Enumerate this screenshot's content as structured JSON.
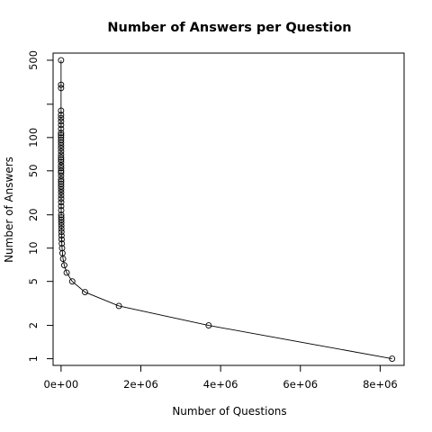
{
  "chart_data": {
    "type": "line",
    "title": "Number of Answers per Question",
    "xlabel": "Number of Questions",
    "ylabel": "Number of Answers",
    "xlim": [
      -200000,
      8600000
    ],
    "ylim": [
      0.87,
      580
    ],
    "yscale": "log",
    "markers": "open-circle",
    "grid": false,
    "legend": "none",
    "x_ticks": [
      {
        "value": 0,
        "label": "0e+00"
      },
      {
        "value": 2000000,
        "label": "2e+06"
      },
      {
        "value": 4000000,
        "label": "4e+06"
      },
      {
        "value": 6000000,
        "label": "6e+06"
      },
      {
        "value": 8000000,
        "label": "8e+06"
      }
    ],
    "y_ticks": [
      {
        "value": 1,
        "label": "1"
      },
      {
        "value": 2,
        "label": "2"
      },
      {
        "value": 5,
        "label": "5"
      },
      {
        "value": 10,
        "label": "10"
      },
      {
        "value": 20,
        "label": "20"
      },
      {
        "value": 50,
        "label": "50"
      },
      {
        "value": 100,
        "label": "100"
      },
      {
        "value": 200,
        "label": ""
      },
      {
        "value": 500,
        "label": "500"
      }
    ],
    "x": [
      8300000,
      3700000,
      1450000,
      600000,
      280000,
      140000,
      80000,
      50000,
      35000,
      25000,
      18000,
      14000,
      11000,
      9000,
      7500,
      6500,
      5500,
      4800,
      4200,
      3700,
      3300,
      2900,
      2600,
      2300,
      2100,
      1900,
      1700,
      1500,
      1400,
      1300,
      1200,
      1100,
      1000,
      900,
      800,
      700,
      650,
      600,
      550,
      500,
      450,
      400,
      350,
      300,
      250,
      200,
      150,
      100,
      80,
      60,
      40,
      30,
      20,
      15,
      10,
      5,
      1
    ],
    "values": [
      1,
      2,
      3,
      4,
      5,
      6,
      7,
      8,
      9,
      10,
      11,
      12,
      13,
      14,
      15,
      16,
      17,
      18,
      19,
      20,
      22,
      24,
      26,
      28,
      30,
      32,
      34,
      36,
      38,
      40,
      42,
      45,
      48,
      50,
      53,
      56,
      60,
      63,
      66,
      70,
      75,
      80,
      85,
      90,
      95,
      100,
      105,
      110,
      120,
      130,
      140,
      150,
      160,
      175,
      280,
      300,
      500
    ]
  }
}
